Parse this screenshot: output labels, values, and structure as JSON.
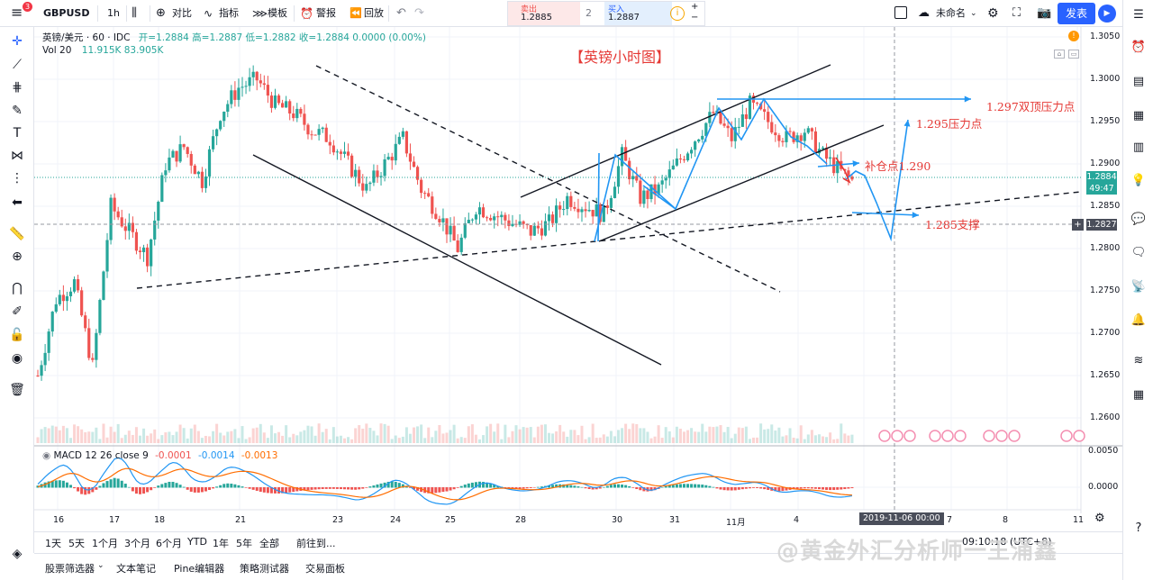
{
  "topbar": {
    "symbol": "GBPUSD",
    "interval": "1h",
    "compare": "对比",
    "indicators": "指标",
    "templates": "模板",
    "alert": "警报",
    "replay": "回放",
    "sell_label": "卖出",
    "sell_price": "1.2885",
    "spread": "2",
    "buy_label": "买入",
    "buy_price": "1.2887",
    "layout_name": "未命名",
    "publish": "发表",
    "notification_count": "3"
  },
  "legend": {
    "title": "英镑/美元 · 60 · IDC",
    "ohlc": "开=1.2884  高=1.2887  低=1.2882  收=1.2884  0.0000 (0.00%)",
    "vol_label": "Vol 20",
    "vol_values": "11.915K  83.905K",
    "macd_label": "MACD 12 26 close 9",
    "macd_v1": "-0.0001",
    "macd_v2": "-0.0014",
    "macd_v3": "-0.0013"
  },
  "annotations": {
    "title": "【英镑小时图】",
    "a1": "1.297双顶压力点",
    "a2": "1.295压力点",
    "a3": "补仓点1.290",
    "a4": "1.285支撑"
  },
  "price_axis": {
    "ticks": [
      "1.3050",
      "1.3000",
      "1.2950",
      "1.2900",
      "1.2850",
      "1.2800",
      "1.2750",
      "1.2700",
      "1.2650",
      "1.2600"
    ],
    "current_price": "1.2884",
    "countdown": "49:47",
    "crosshair_price": "1.2827",
    "macd_ticks": [
      "0.0050",
      "0.0000",
      "-0.0050"
    ]
  },
  "time_axis": {
    "ticks": [
      "16",
      "17",
      "18",
      "21",
      "23",
      "24",
      "25",
      "28",
      "30",
      "31",
      "11月",
      "4",
      "6",
      "7",
      "8",
      "11"
    ],
    "crosshair_time": "2019-11-06   00:00"
  },
  "bottombar": {
    "ranges": [
      "1天",
      "5天",
      "1个月",
      "3个月",
      "6个月",
      "YTD",
      "1年",
      "5年",
      "全部"
    ],
    "goto": "前往到...",
    "clock": "09:10:18 (UTC+8)"
  },
  "panelbar": {
    "tabs": [
      "股票筛选器",
      "文本笔记",
      "Pine编辑器",
      "策略测试器",
      "交易面板"
    ]
  },
  "watermark": "@黄金外汇分析师一王涌鑫",
  "colors": {
    "up": "#26a69a",
    "down": "#ef5350",
    "annot_red": "#e53935",
    "arrow_blue": "#2196f3",
    "accent": "#2962ff"
  },
  "chart_data": {
    "type": "candlestick",
    "symbol": "GBPUSD",
    "interval": "60",
    "ylim": [
      1.2575,
      1.3055
    ],
    "approx_path": [
      [
        0,
        1.265
      ],
      [
        5,
        1.274
      ],
      [
        10,
        1.276
      ],
      [
        15,
        1.266
      ],
      [
        20,
        1.285
      ],
      [
        25,
        1.282
      ],
      [
        30,
        1.279
      ],
      [
        35,
        1.29
      ],
      [
        40,
        1.292
      ],
      [
        45,
        1.288
      ],
      [
        50,
        1.296
      ],
      [
        55,
        1.299
      ],
      [
        60,
        1.3
      ],
      [
        65,
        1.297
      ],
      [
        70,
        1.296
      ],
      [
        75,
        1.294
      ],
      [
        80,
        1.293
      ],
      [
        85,
        1.29
      ],
      [
        90,
        1.287
      ],
      [
        95,
        1.29
      ],
      [
        100,
        1.293
      ],
      [
        105,
        1.287
      ],
      [
        110,
        1.284
      ],
      [
        115,
        1.28
      ],
      [
        120,
        1.285
      ],
      [
        125,
        1.284
      ],
      [
        130,
        1.283
      ],
      [
        135,
        1.282
      ],
      [
        140,
        1.283
      ],
      [
        145,
        1.286
      ],
      [
        150,
        1.285
      ],
      [
        155,
        1.284
      ],
      [
        160,
        1.291
      ],
      [
        165,
        1.286
      ],
      [
        170,
        1.287
      ],
      [
        175,
        1.29
      ],
      [
        180,
        1.293
      ],
      [
        185,
        1.296
      ],
      [
        190,
        1.293
      ],
      [
        195,
        1.297
      ],
      [
        200,
        1.295
      ],
      [
        205,
        1.293
      ],
      [
        210,
        1.294
      ],
      [
        215,
        1.291
      ],
      [
        220,
        1.289
      ],
      [
        223,
        1.288
      ]
    ]
  }
}
